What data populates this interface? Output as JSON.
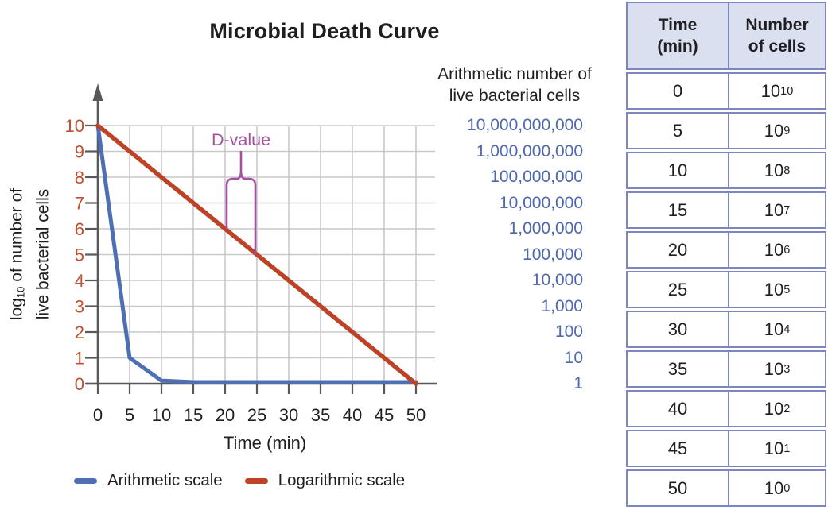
{
  "chart_data": {
    "type": "line",
    "title": "Microbial Death Curve",
    "xlabel": "Time (min)",
    "ylabel": "log10 of number of live bacterial cells",
    "ylabel_parts": {
      "prefix": "log",
      "sub": "10",
      "suffix": " of number of",
      "line2": "live bacterial cells"
    },
    "xlim": [
      0,
      50
    ],
    "ylim": [
      0,
      10
    ],
    "x_ticks": [
      0,
      5,
      10,
      15,
      20,
      25,
      30,
      35,
      40,
      45,
      50
    ],
    "y_ticks": [
      0,
      1,
      2,
      3,
      4,
      5,
      6,
      7,
      8,
      9,
      10
    ],
    "grid": true,
    "legend_position": "bottom",
    "series": [
      {
        "id": "arithmetic",
        "name": "Arithmetic scale",
        "color": "#4e6fb4",
        "width": 5,
        "x": [
          0,
          5,
          10,
          15,
          20,
          25,
          30,
          35,
          40,
          45,
          50
        ],
        "y": [
          10,
          1,
          0.12,
          0.06,
          0.06,
          0.06,
          0.06,
          0.06,
          0.06,
          0.06,
          0.06
        ]
      },
      {
        "id": "logarithmic",
        "name": "Logarithmic scale",
        "color": "#bd4327",
        "width": 5.5,
        "x": [
          0,
          50
        ],
        "y": [
          10,
          0
        ]
      }
    ],
    "annotation": {
      "label": "D-value",
      "color": "#a4509e",
      "x_start": 20,
      "x_end": 25,
      "y_top": 8,
      "y_left_end": 6,
      "y_right_end": 5
    },
    "secondary_axis": {
      "heading": "Arithmetic number of\nlive bacterial cells",
      "color": "#4f67ad",
      "labels": [
        "10,000,000,000",
        "1,000,000,000",
        "100,000,000",
        "10,000,000",
        "1,000,000",
        "100,000",
        "10,000",
        "1,000",
        "100",
        "10",
        "1"
      ]
    },
    "colors": {
      "grid": "#c9c9cb",
      "axis": "#58595b",
      "y_tick_labels": "#c0502f",
      "text": "#1f1f21"
    }
  },
  "table": {
    "headers": [
      "Time\n(min)",
      "Number\nof cells"
    ],
    "border_color": "#7d86c0",
    "header_bg": "#dbe0f0",
    "base": "10",
    "rows": [
      {
        "time": "0",
        "exp": "10"
      },
      {
        "time": "5",
        "exp": "9"
      },
      {
        "time": "10",
        "exp": "8"
      },
      {
        "time": "15",
        "exp": "7"
      },
      {
        "time": "20",
        "exp": "6"
      },
      {
        "time": "25",
        "exp": "5"
      },
      {
        "time": "30",
        "exp": "4"
      },
      {
        "time": "35",
        "exp": "3"
      },
      {
        "time": "40",
        "exp": "2"
      },
      {
        "time": "45",
        "exp": "1"
      },
      {
        "time": "50",
        "exp": "0"
      }
    ]
  }
}
